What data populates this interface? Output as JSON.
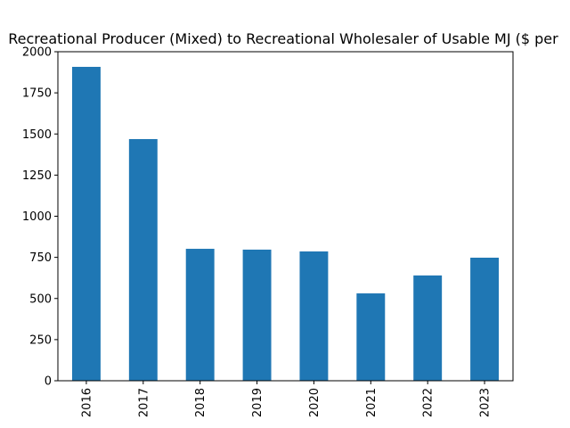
{
  "chart_data": {
    "type": "bar",
    "title": "Recreational Producer (Mixed) to Recreational Wholesaler of Usable MJ ($ per",
    "categories": [
      "2016",
      "2017",
      "2018",
      "2019",
      "2020",
      "2021",
      "2022",
      "2023"
    ],
    "values": [
      1908,
      1469,
      802,
      797,
      786,
      531,
      640,
      748
    ],
    "color": "#1f77b4",
    "ylim": [
      0,
      2000
    ],
    "yticks": [
      0,
      250,
      500,
      750,
      1000,
      1250,
      1500,
      1750,
      2000
    ],
    "grid": false
  }
}
